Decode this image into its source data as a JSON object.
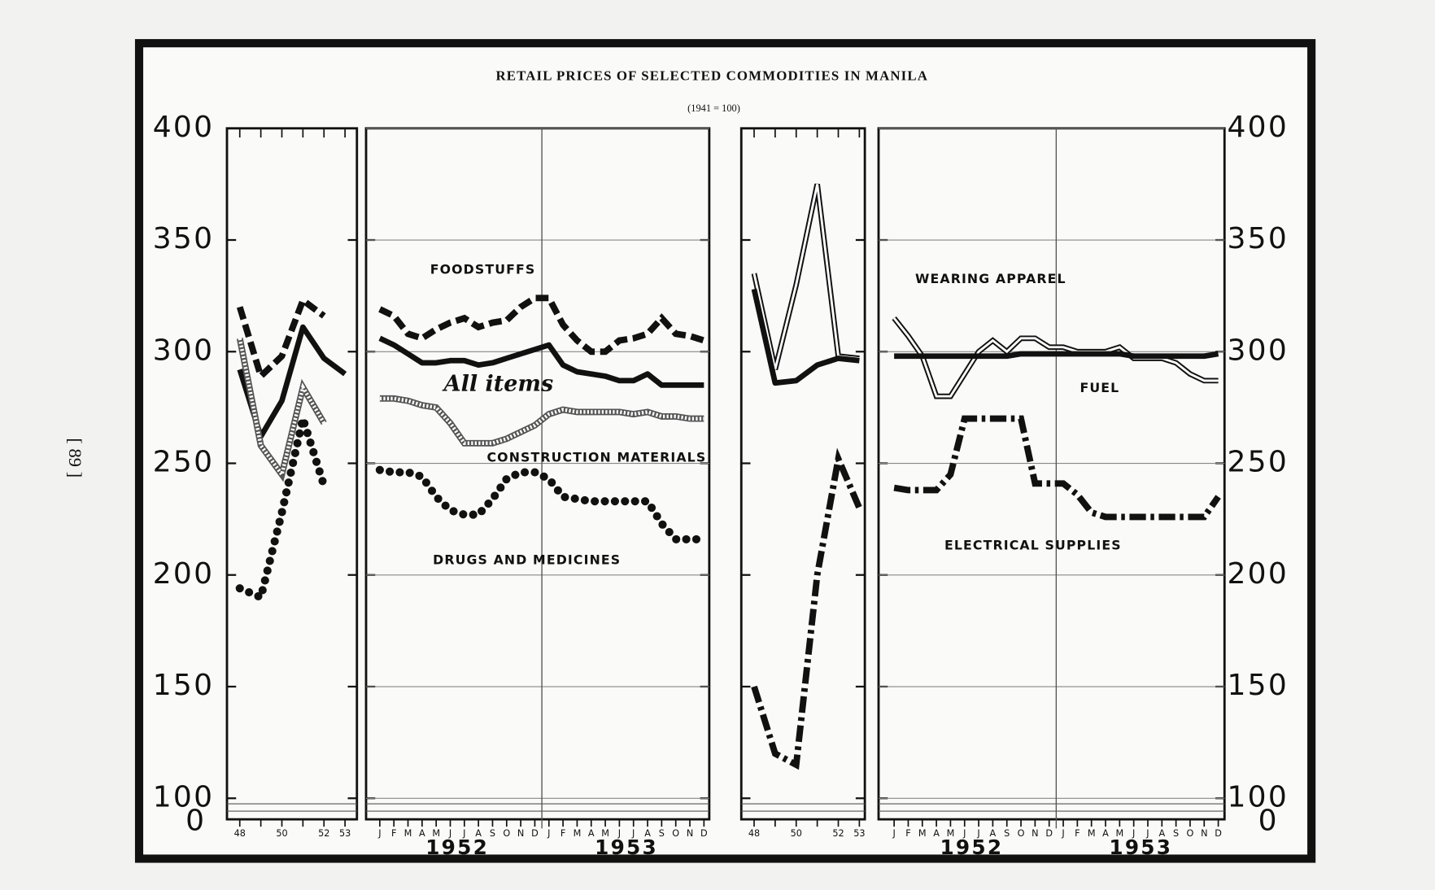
{
  "page_number": "[ 89 ]",
  "chart_data": [
    {
      "type": "line",
      "title": "RETAIL PRICES OF SELECTED COMMODITIES IN MANILA",
      "subtitle": "(1941 = 100)",
      "categories": [
        "48",
        null,
        "50",
        null,
        "52",
        "53"
      ],
      "ylim": [
        100,
        400
      ],
      "yticks": [
        100,
        150,
        200,
        250,
        300,
        350,
        400
      ],
      "zero_tick": 0,
      "ytick_side": "left",
      "grid": false,
      "series": [
        {
          "color": "#111",
          "style": "dash",
          "values": [
            320,
            289,
            298,
            323,
            316,
            null
          ]
        },
        {
          "color": "#111",
          "style": "solid",
          "values": [
            292,
            262,
            278,
            311,
            297,
            290
          ]
        },
        {
          "color": "#555",
          "style": "hatched",
          "values": [
            306,
            258,
            245,
            284,
            268,
            null
          ]
        },
        {
          "color": "#111",
          "style": "dots",
          "values": [
            194,
            190,
            228,
            270,
            240,
            null
          ]
        }
      ]
    },
    {
      "type": "line",
      "categories": [
        "J",
        "F",
        "M",
        "A",
        "M",
        "J",
        "J",
        "A",
        "S",
        "O",
        "N",
        "D",
        "J",
        "F",
        "M",
        "A",
        "M",
        "J",
        "J",
        "A",
        "S",
        "O",
        "N",
        "D"
      ],
      "year_labels": [
        "1952",
        "1953"
      ],
      "ylim": [
        100,
        400
      ],
      "yticks": [
        100,
        150,
        200,
        250,
        300,
        350,
        400
      ],
      "ytick_side": "none",
      "grid": true,
      "series": [
        {
          "name": "FOODSTUFFS",
          "color": "#111",
          "style": "dash",
          "values": [
            319,
            316,
            308,
            306,
            310,
            313,
            315,
            311,
            313,
            314,
            320,
            324,
            324,
            312,
            305,
            300,
            300,
            305,
            306,
            308,
            315,
            308,
            307,
            305
          ]
        },
        {
          "name": "All items",
          "color": "#111",
          "style": "solid",
          "values": [
            306,
            303,
            299,
            295,
            295,
            296,
            296,
            294,
            295,
            297,
            299,
            301,
            303,
            294,
            291,
            290,
            289,
            287,
            287,
            290,
            285,
            285,
            285,
            285
          ]
        },
        {
          "name": "CONSTRUCTION MATERIALS",
          "color": "#555",
          "style": "hatched",
          "values": [
            279,
            279,
            278,
            276,
            275,
            268,
            259,
            259,
            259,
            261,
            264,
            267,
            272,
            274,
            273,
            273,
            273,
            273,
            272,
            273,
            271,
            271,
            270,
            270
          ]
        },
        {
          "name": "DRUGS AND MEDICINES",
          "color": "#111",
          "style": "dots",
          "values": [
            247,
            246,
            246,
            244,
            235,
            229,
            227,
            227,
            234,
            243,
            246,
            246,
            243,
            235,
            234,
            233,
            233,
            233,
            233,
            233,
            223,
            216,
            216,
            216
          ]
        }
      ]
    },
    {
      "type": "line",
      "categories": [
        "48",
        null,
        "50",
        null,
        "52",
        "53"
      ],
      "ylim": [
        100,
        400
      ],
      "yticks": [
        100,
        150,
        200,
        250,
        300,
        350,
        400
      ],
      "ytick_side": "none",
      "grid": false,
      "series": [
        {
          "color": "#111",
          "style": "double",
          "values": [
            335,
            292,
            330,
            375,
            298,
            297
          ]
        },
        {
          "color": "#111",
          "style": "solid",
          "values": [
            328,
            286,
            287,
            294,
            297,
            296
          ]
        },
        {
          "color": "#111",
          "style": "dashdot",
          "values": [
            150,
            120,
            115,
            200,
            252,
            230
          ]
        }
      ]
    },
    {
      "type": "line",
      "categories": [
        "J",
        "F",
        "M",
        "A",
        "M",
        "J",
        "J",
        "A",
        "S",
        "O",
        "N",
        "D",
        "J",
        "F",
        "M",
        "A",
        "M",
        "J",
        "J",
        "A",
        "S",
        "O",
        "N",
        "D"
      ],
      "year_labels": [
        "1952",
        "1953"
      ],
      "ylim": [
        100,
        400
      ],
      "yticks": [
        100,
        150,
        200,
        250,
        300,
        350,
        400
      ],
      "zero_tick": 0,
      "ytick_side": "right",
      "grid": true,
      "series": [
        {
          "name": "WEARING APPAREL",
          "color": "#111",
          "style": "double",
          "values": [
            315,
            307,
            298,
            280,
            280,
            290,
            300,
            305,
            300,
            306,
            306,
            302,
            302,
            300,
            300,
            300,
            302,
            297,
            297,
            297,
            295,
            290,
            287,
            287
          ]
        },
        {
          "name": "FUEL",
          "color": "#111",
          "style": "solid",
          "values": [
            298,
            298,
            298,
            298,
            298,
            298,
            298,
            298,
            298,
            299,
            299,
            299,
            299,
            299,
            299,
            299,
            299,
            298,
            298,
            298,
            298,
            298,
            298,
            299
          ]
        },
        {
          "name": "ELECTRICAL SUPPLIES",
          "color": "#111",
          "style": "dashdot",
          "values": [
            239,
            238,
            238,
            238,
            245,
            270,
            270,
            270,
            270,
            270,
            241,
            241,
            241,
            236,
            228,
            226,
            226,
            226,
            226,
            226,
            226,
            226,
            226,
            235
          ]
        }
      ]
    }
  ]
}
